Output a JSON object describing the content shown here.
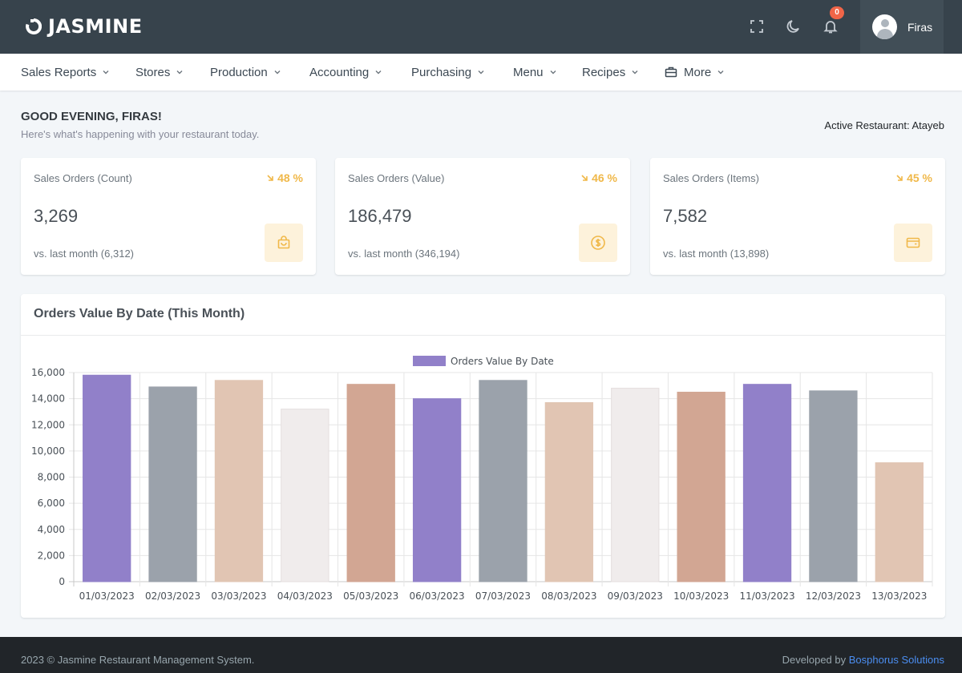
{
  "app": {
    "logo_text": "JASMINE"
  },
  "topbar": {
    "notification_count": "0",
    "user_name": "Firas"
  },
  "nav": {
    "items": [
      {
        "label": "Sales Reports"
      },
      {
        "label": "Stores"
      },
      {
        "label": "Production"
      },
      {
        "label": "Accounting"
      },
      {
        "label": "Purchasing"
      },
      {
        "label": "Menu"
      },
      {
        "label": "Recipes"
      },
      {
        "label": "More"
      }
    ]
  },
  "greeting": {
    "title": "GOOD EVENING, FIRAS!",
    "subtitle": "Here's what's happening with your restaurant today.",
    "active_restaurant": "Active Restaurant: Atayeb"
  },
  "stats": [
    {
      "title": "Sales Orders (Count)",
      "percent": "48 %",
      "value": "3,269",
      "comparison": "vs. last month (6,312)",
      "icon": "shopping-bag-icon"
    },
    {
      "title": "Sales Orders (Value)",
      "percent": "46 %",
      "value": "186,479",
      "comparison": "vs. last month (346,194)",
      "icon": "dollar-coin-icon"
    },
    {
      "title": "Sales Orders (Items)",
      "percent": "45 %",
      "value": "7,582",
      "comparison": "vs. last month (13,898)",
      "icon": "wallet-icon"
    }
  ],
  "colors": {
    "accent_warning": "#f0b849",
    "topbar": "#37434c",
    "bar_palette": [
      "#9180c9",
      "#9ba2ab",
      "#e1c5b3",
      "#f0ecec",
      "#d2a693"
    ]
  },
  "chart": {
    "title": "Orders Value By Date (This Month)",
    "legend": "Orders Value By Date"
  },
  "chart_data": {
    "type": "bar",
    "categories": [
      "01/03/2023",
      "02/03/2023",
      "03/03/2023",
      "04/03/2023",
      "05/03/2023",
      "06/03/2023",
      "07/03/2023",
      "08/03/2023",
      "09/03/2023",
      "10/03/2023",
      "11/03/2023",
      "12/03/2023",
      "13/03/2023"
    ],
    "series": [
      {
        "name": "Orders Value By Date",
        "values": [
          15800,
          14900,
          15400,
          13200,
          15100,
          14000,
          15400,
          13700,
          14800,
          14500,
          15100,
          14600,
          9100
        ]
      }
    ],
    "yticks": [
      0,
      2000,
      4000,
      6000,
      8000,
      10000,
      12000,
      14000,
      16000
    ],
    "ylim": [
      0,
      16000
    ],
    "legend_position": "top-center",
    "grid": true
  },
  "footer": {
    "left": "2023 © Jasmine Restaurant Management System.",
    "right_prefix": "Developed by",
    "right_link": "Bosphorus Solutions"
  }
}
